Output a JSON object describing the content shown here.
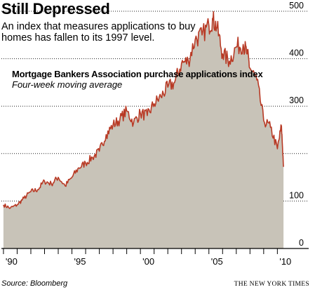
{
  "headline": "Still Depressed",
  "subhead": "An index that measures applications to buy homes has fallen to its 1997 level.",
  "series_title": "Mortgage Bankers Association purchase applications index",
  "series_note": "Four-week moving average",
  "source": "Source: Bloomberg",
  "credit": "THE NEW YORK TIMES",
  "colors": {
    "line": "#b83a25",
    "area": "#c8c3b8",
    "gridline": "#222222"
  },
  "chart_data": {
    "type": "area",
    "title": "Still Depressed",
    "series": [
      {
        "name": "Mortgage Bankers Association purchase applications index",
        "x": [
          1990,
          1990.5,
          1991,
          1991.5,
          1992,
          1992.5,
          1993,
          1993.5,
          1994,
          1994.5,
          1995,
          1995.5,
          1996,
          1996.5,
          1997,
          1997.5,
          1998,
          1998.5,
          1999,
          1999.5,
          2000,
          2000.5,
          2001,
          2001.5,
          2002,
          2002.5,
          2003,
          2003.5,
          2004,
          2004.5,
          2005,
          2005.3,
          2005.6,
          2006,
          2006.5,
          2007,
          2007.5,
          2007.8,
          2008,
          2008.5,
          2009,
          2009.5,
          2010,
          2010.3,
          2010.45
        ],
        "y": [
          92,
          85,
          92,
          106,
          120,
          124,
          142,
          136,
          150,
          132,
          150,
          170,
          180,
          192,
          205,
          240,
          260,
          272,
          290,
          265,
          285,
          280,
          305,
          320,
          340,
          350,
          390,
          395,
          440,
          450,
          470,
          482,
          465,
          410,
          395,
          425,
          430,
          410,
          380,
          355,
          270,
          255,
          210,
          258,
          172
        ]
      }
    ],
    "xticks": [
      "'90",
      "'95",
      "'00",
      "'05",
      "'10"
    ],
    "xtick_values": [
      1990,
      1995,
      2000,
      2005,
      2010
    ],
    "xlim": [
      1989.85,
      2010.75
    ],
    "yticks": [
      0,
      100,
      300,
      400,
      500
    ],
    "ylim": [
      0,
      500
    ],
    "gridlines": [
      100,
      200,
      300,
      400,
      500
    ],
    "axis_side": "right",
    "grid": true
  }
}
